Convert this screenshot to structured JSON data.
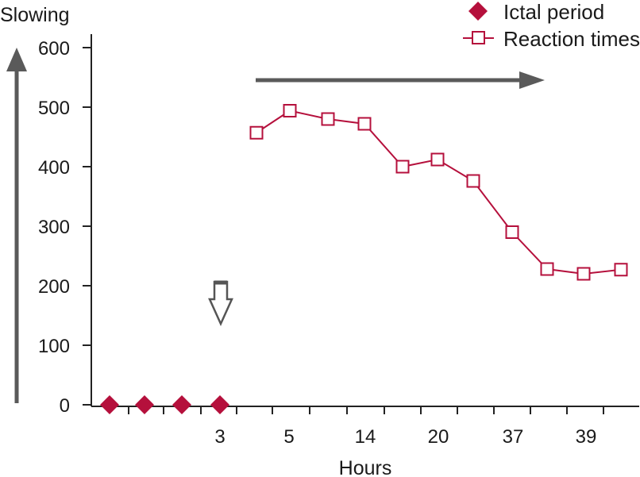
{
  "chart_data": {
    "type": "line",
    "ylabel": "Slowing",
    "xlabel": "Hours",
    "ylim": [
      0,
      600
    ],
    "y_ticks": [
      0,
      100,
      200,
      300,
      400,
      500,
      600
    ],
    "x_tick_labels": [
      "3",
      "5",
      "14",
      "20",
      "37",
      "39"
    ],
    "grid": false,
    "legend_position": "top-right",
    "series": [
      {
        "name": "Ictal period",
        "marker": "filled-diamond",
        "color": "#b5103c",
        "values": [
          0,
          0,
          0,
          0
        ]
      },
      {
        "name": "Reaction times",
        "marker": "open-square",
        "color": "#b5103c",
        "values": [
          457,
          494,
          480,
          472,
          400,
          412,
          376,
          290,
          228,
          220,
          227
        ]
      }
    ],
    "annotations": [
      {
        "type": "arrow-up",
        "description": "vertical arrow along y axis"
      },
      {
        "type": "arrow-right",
        "description": "horizontal arrow above reaction times"
      },
      {
        "type": "arrow-down-open",
        "description": "open arrow pointing at hour 3"
      }
    ]
  }
}
